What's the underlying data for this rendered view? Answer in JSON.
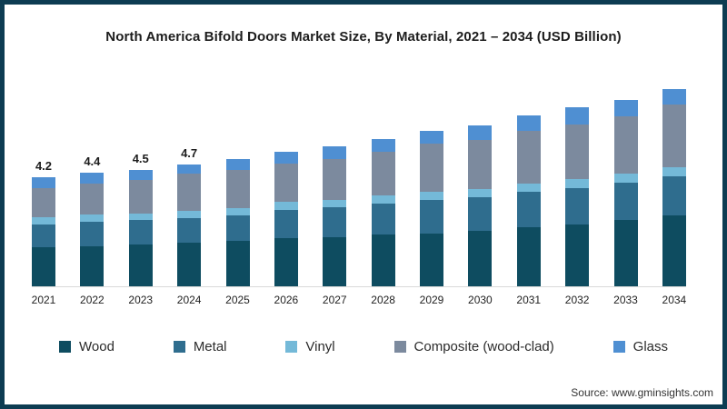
{
  "frame": {
    "border_color": "#0d3c52",
    "background_color": "#ffffff"
  },
  "title": "North America Bifold Doors Market Size, By Material, 2021 – 2034 (USD Billion)",
  "source": "Source: www.gminsights.com",
  "chart_data": {
    "type": "bar",
    "stacked": true,
    "title": "North America Bifold Doors Market Size, By Material, 2021 – 2034 (USD Billion)",
    "unit": "USD Billion",
    "xlabel": "",
    "ylabel": "",
    "ylim": [
      0,
      8
    ],
    "grid": false,
    "legend_position": "bottom",
    "categories": [
      "2021",
      "2022",
      "2023",
      "2024",
      "2025",
      "2026",
      "2027",
      "2028",
      "2029",
      "2030",
      "2031",
      "2032",
      "2033",
      "2034"
    ],
    "totals": [
      4.2,
      4.4,
      4.5,
      4.7,
      4.9,
      5.2,
      5.4,
      5.7,
      6.0,
      6.2,
      6.6,
      6.9,
      7.2,
      7.6
    ],
    "value_labels": [
      "4.2",
      "4.4",
      "4.5",
      "4.7",
      null,
      null,
      null,
      null,
      null,
      null,
      null,
      null,
      null,
      null
    ],
    "series": [
      {
        "name": "Wood",
        "color": "#0e4c60",
        "values": [
          1.5,
          1.55,
          1.6,
          1.7,
          1.75,
          1.85,
          1.9,
          2.0,
          2.05,
          2.15,
          2.3,
          2.4,
          2.55,
          2.75
        ]
      },
      {
        "name": "Metal",
        "color": "#2f6d8e",
        "values": [
          0.9,
          0.95,
          0.95,
          0.95,
          1.0,
          1.1,
          1.15,
          1.2,
          1.3,
          1.3,
          1.35,
          1.4,
          1.45,
          1.5
        ]
      },
      {
        "name": "Vinyl",
        "color": "#74b9d8",
        "values": [
          0.25,
          0.26,
          0.27,
          0.28,
          0.28,
          0.3,
          0.3,
          0.3,
          0.3,
          0.32,
          0.33,
          0.34,
          0.35,
          0.35
        ]
      },
      {
        "name": "Composite (wood-clad)",
        "color": "#7c8a9e",
        "values": [
          1.15,
          1.22,
          1.28,
          1.42,
          1.45,
          1.5,
          1.55,
          1.7,
          1.85,
          1.88,
          2.02,
          2.11,
          2.2,
          2.4
        ]
      },
      {
        "name": "Glass",
        "color": "#4f8fd2",
        "values": [
          0.4,
          0.42,
          0.4,
          0.35,
          0.42,
          0.45,
          0.5,
          0.5,
          0.5,
          0.55,
          0.6,
          0.65,
          0.65,
          0.6
        ]
      }
    ]
  }
}
